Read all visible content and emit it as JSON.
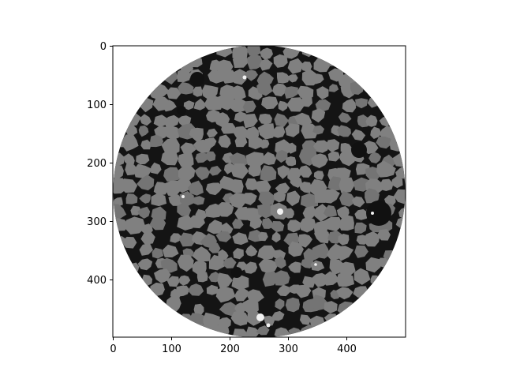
{
  "figure": {
    "x_ticks": [
      "0",
      "100",
      "200",
      "300",
      "400"
    ],
    "y_ticks": [
      "0",
      "100",
      "200",
      "300",
      "400"
    ],
    "x_range": [
      0,
      500
    ],
    "y_range": [
      0,
      500
    ],
    "y_inverted": true
  },
  "image": {
    "subject": "circular cross-section micro-CT slice of packed sand grains",
    "colors": {
      "background_outside": "#ffffff",
      "pore": "#111111",
      "grain": "#808080",
      "grain_alt": "#747474",
      "bright_inclusion": "#f2f2f2"
    }
  }
}
